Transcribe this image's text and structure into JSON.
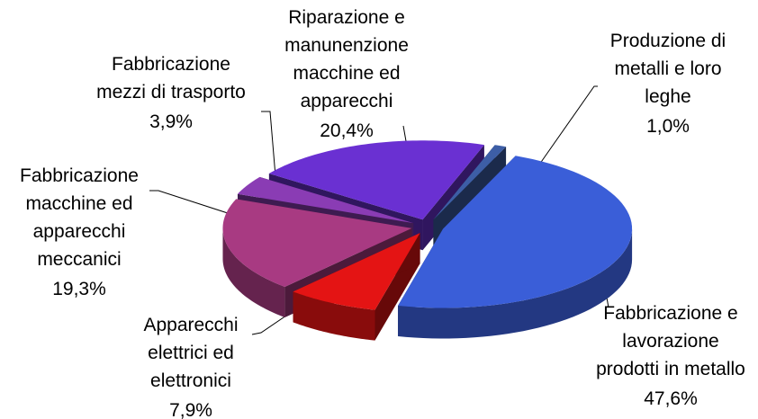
{
  "chart_data": {
    "type": "pie",
    "categories": [
      "Produzione di\nmetalli e loro\nleghe",
      "Fabbricazione e\nlavorazione\nprodotti in metallo",
      "Apparecchi\nelettrici ed\nelettronici",
      "Fabbricazione\nmacchine ed\napparecchi\nmeccanici",
      "Fabbricazione\nmezzi di trasporto",
      "Riparazione e\nmanunenzione\nmacchine ed\napparecchi"
    ],
    "values": [
      1.0,
      47.6,
      7.9,
      19.3,
      3.9,
      20.4
    ],
    "value_labels": [
      "1,0%",
      "47,6%",
      "7,9%",
      "19,3%",
      "3,9%",
      "20,4%"
    ],
    "colors": [
      "#3d5ea6",
      "#3a5ed8",
      "#e41414",
      "#a83a82",
      "#8a3cb4",
      "#6a30d2"
    ],
    "three_d": true,
    "exploded": true
  }
}
